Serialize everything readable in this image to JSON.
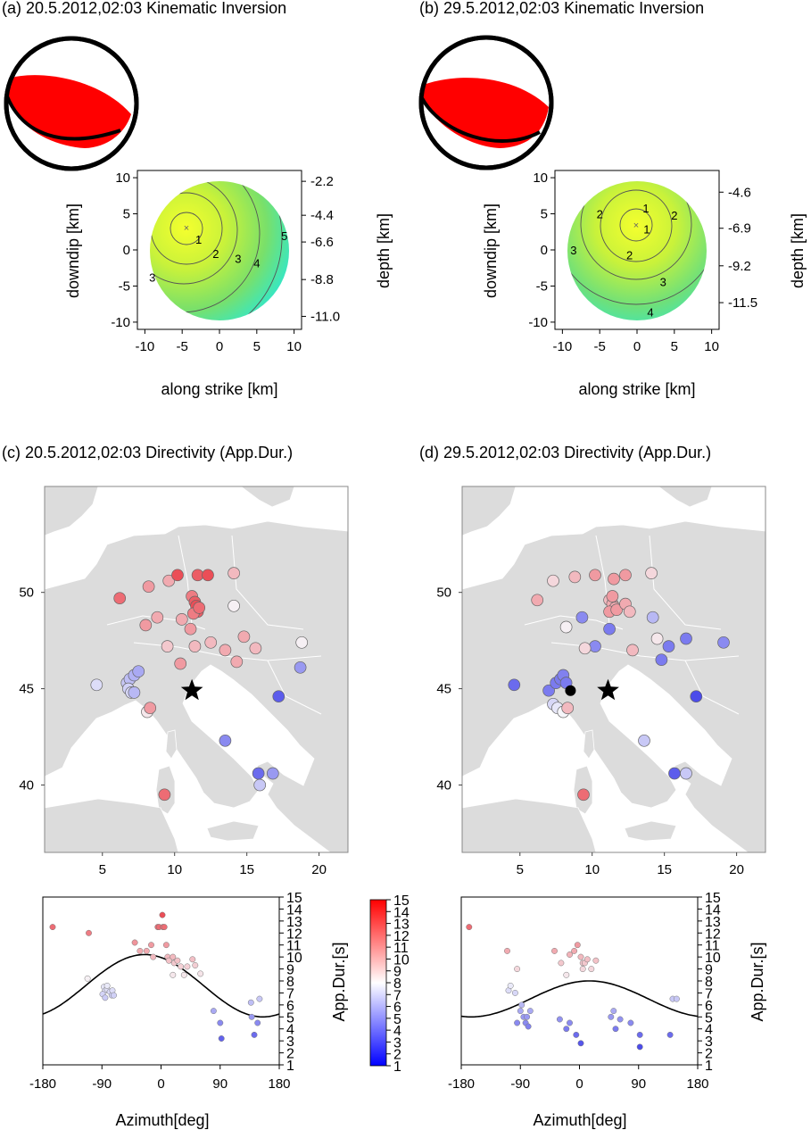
{
  "figure": {
    "panel_a_title": "(a) 20.5.2012,02:03 Kinematic Inversion",
    "panel_b_title": "(b) 29.5.2012,02:03 Kinematic Inversion",
    "panel_c_title": "(c) 20.5.2012,02:03 Directivity (App.Dur.)",
    "panel_d_title": "(d) 29.5.2012,02:03 Directivity (App.Dur.)"
  },
  "colors": {
    "mechanism": "#ff0000",
    "contour_inner": "#f2ff2e",
    "contour_outer": "#2ee6cf",
    "sea": "#ffffff",
    "land": "#dcdcdc",
    "red": "#e8202a",
    "white": "#f4f4f8",
    "blue": "#2a2ae0"
  },
  "chart_data": [
    {
      "type": "contour",
      "panel": "a",
      "xlabel": "along strike [km]",
      "ylabel": "downdip [km]",
      "y2label": "depth [km]",
      "xlim": [
        -11,
        11
      ],
      "ylim": [
        -11,
        11
      ],
      "xticks": [
        -10,
        -5,
        0,
        5,
        10
      ],
      "yticks": [
        10,
        5,
        0,
        -5,
        -10
      ],
      "depth_ticks": [
        {
          "y": 9.5,
          "label": "-2.2"
        },
        {
          "y": 4.8,
          "label": "-4.4"
        },
        {
          "y": 1.1,
          "label": "-6.6"
        },
        {
          "y": -4.1,
          "label": "-8.8"
        },
        {
          "y": -9.2,
          "label": "-11.0"
        }
      ],
      "hypocenter": {
        "x": -4.7,
        "y": 3.2
      },
      "radius": 10,
      "contour_labels": [
        {
          "x": -2.8,
          "y": 1.5,
          "label": "1"
        },
        {
          "x": -0.5,
          "y": -0.5,
          "label": "2"
        },
        {
          "x": 2.5,
          "y": -1.2,
          "label": "3"
        },
        {
          "x": 5.0,
          "y": -1.8,
          "label": "4"
        },
        {
          "x": 8.7,
          "y": 2.0,
          "label": "5"
        },
        {
          "x": -9.0,
          "y": -3.8,
          "label": "3"
        }
      ]
    },
    {
      "type": "contour",
      "panel": "b",
      "xlabel": "along strike [km]",
      "ylabel": "downdip [km]",
      "y2label": "depth [km]",
      "xlim": [
        -11,
        11
      ],
      "ylim": [
        -11,
        11
      ],
      "xticks": [
        -10,
        -5,
        0,
        5,
        10
      ],
      "yticks": [
        10,
        5,
        0,
        -5,
        -10
      ],
      "depth_ticks": [
        {
          "y": 8.0,
          "label": "-4.6"
        },
        {
          "y": 3.0,
          "label": "-6.9"
        },
        {
          "y": -2.2,
          "label": "-9.2"
        },
        {
          "y": -7.3,
          "label": "-11.5"
        }
      ],
      "hypocenter": {
        "x": 0.0,
        "y": 3.6
      },
      "radius": 10,
      "contour_labels": [
        {
          "x": 1.2,
          "y": 5.8,
          "label": "1"
        },
        {
          "x": 1.3,
          "y": 2.9,
          "label": "1"
        },
        {
          "x": -5.0,
          "y": 5.0,
          "label": "2"
        },
        {
          "x": 5.0,
          "y": 4.8,
          "label": "2"
        },
        {
          "x": -1.0,
          "y": -0.7,
          "label": "2"
        },
        {
          "x": -8.5,
          "y": 0.0,
          "label": "3"
        },
        {
          "x": 3.5,
          "y": -4.4,
          "label": "3"
        },
        {
          "x": 1.8,
          "y": -8.6,
          "label": "4"
        }
      ]
    },
    {
      "type": "scatter",
      "panel": "c",
      "xlim": [
        1,
        22
      ],
      "ylim": [
        36.5,
        55.5
      ],
      "xticks": [
        5,
        10,
        15,
        20
      ],
      "yticks": [
        50,
        45,
        40
      ],
      "epicenter": {
        "lon": 11.2,
        "lat": 44.9
      },
      "stations": [
        [
          6.2,
          49.7,
          12.5
        ],
        [
          8.2,
          50.3,
          11
        ],
        [
          9.6,
          50.6,
          10.5
        ],
        [
          10.2,
          50.9,
          13.5
        ],
        [
          11.6,
          50.9,
          13
        ],
        [
          12.3,
          50.9,
          13.5
        ],
        [
          14.1,
          51.0,
          10
        ],
        [
          8.0,
          48.3,
          11
        ],
        [
          8.8,
          48.7,
          10.5
        ],
        [
          10.5,
          48.6,
          10.5
        ],
        [
          11.2,
          49.8,
          12
        ],
        [
          11.4,
          49.5,
          13
        ],
        [
          11.5,
          49.3,
          13.5
        ],
        [
          11.6,
          49.0,
          13
        ],
        [
          11.3,
          48.9,
          12
        ],
        [
          11.7,
          49.2,
          12.5
        ],
        [
          11.1,
          48.1,
          11
        ],
        [
          9.5,
          47.2,
          9.5
        ],
        [
          11.4,
          47.2,
          10
        ],
        [
          12.5,
          47.4,
          10
        ],
        [
          13.5,
          47.0,
          10.5
        ],
        [
          14.8,
          47.7,
          10.5
        ],
        [
          15.6,
          47.1,
          10
        ],
        [
          14.3,
          46.4,
          10.5
        ],
        [
          14.1,
          49.3,
          8.2
        ],
        [
          18.8,
          47.4,
          8.2
        ],
        [
          10.4,
          46.3,
          11
        ],
        [
          4.6,
          45.2,
          7.2
        ],
        [
          6.7,
          45.3,
          6.5
        ],
        [
          6.9,
          45.5,
          6.2
        ],
        [
          7.2,
          45.7,
          5.8
        ],
        [
          7.5,
          45.9,
          5.5
        ],
        [
          6.8,
          45.0,
          6.8
        ],
        [
          7.0,
          44.8,
          7.0
        ],
        [
          7.2,
          44.8,
          6.0
        ],
        [
          8.1,
          43.8,
          8.5
        ],
        [
          8.3,
          44.0,
          11
        ],
        [
          17.2,
          44.6,
          3.0
        ],
        [
          18.7,
          46.1,
          5
        ],
        [
          13.5,
          42.3,
          4.5
        ],
        [
          15.8,
          40.6,
          3.5
        ],
        [
          16.8,
          40.6,
          5
        ],
        [
          15.9,
          40.0,
          6.5
        ],
        [
          9.3,
          39.5,
          12.5
        ]
      ]
    },
    {
      "type": "scatter",
      "panel": "d",
      "xlim": [
        1,
        22
      ],
      "ylim": [
        36.5,
        55.5
      ],
      "xticks": [
        5,
        10,
        15,
        20
      ],
      "yticks": [
        50,
        45,
        40
      ],
      "epicenter": {
        "lon": 11.1,
        "lat": 44.9
      },
      "black_point": {
        "lon": 8.5,
        "lat": 44.9
      },
      "stations": [
        [
          6.2,
          49.6,
          10.5
        ],
        [
          7.3,
          50.6,
          9
        ],
        [
          8.8,
          50.8,
          10
        ],
        [
          10.2,
          50.9,
          11
        ],
        [
          11.5,
          50.7,
          11
        ],
        [
          12.3,
          50.9,
          11
        ],
        [
          14.1,
          51.0,
          9
        ],
        [
          8.2,
          48.2,
          8.2
        ],
        [
          9.3,
          48.7,
          4.5
        ],
        [
          11.2,
          48.1,
          4
        ],
        [
          11.2,
          49.6,
          10
        ],
        [
          11.4,
          49.4,
          10.5
        ],
        [
          11.6,
          49.2,
          10.5
        ],
        [
          11.2,
          49.0,
          11
        ],
        [
          11.7,
          49.1,
          11
        ],
        [
          11.4,
          49.8,
          11
        ],
        [
          12.3,
          49.4,
          10.5
        ],
        [
          12.6,
          49.0,
          10
        ],
        [
          10.2,
          47.2,
          4.5
        ],
        [
          12.8,
          47.0,
          10
        ],
        [
          14.2,
          48.7,
          6
        ],
        [
          14.5,
          47.6,
          8.5
        ],
        [
          15.3,
          47.2,
          4
        ],
        [
          14.8,
          46.5,
          4
        ],
        [
          16.5,
          47.6,
          4
        ],
        [
          19.1,
          47.4,
          4.5
        ],
        [
          9.5,
          47.1,
          9
        ],
        [
          4.6,
          45.2,
          3.5
        ],
        [
          7.0,
          44.9,
          4.0
        ],
        [
          7.5,
          45.3,
          4.0
        ],
        [
          7.8,
          45.5,
          4.0
        ],
        [
          8.0,
          45.7,
          4.2
        ],
        [
          8.2,
          45.3,
          4
        ],
        [
          7.3,
          44.2,
          7
        ],
        [
          7.6,
          44.0,
          7.5
        ],
        [
          8.0,
          43.8,
          8
        ],
        [
          8.3,
          44.0,
          10
        ],
        [
          17.2,
          44.6,
          2.5
        ],
        [
          13.6,
          42.3,
          6.5
        ],
        [
          15.7,
          40.6,
          3
        ],
        [
          16.5,
          40.6,
          6.5
        ],
        [
          9.4,
          39.5,
          12.5
        ]
      ]
    },
    {
      "type": "scatter_curve",
      "panel": "c",
      "xlabel": "Azimuth[deg]",
      "ylabel": "App.Dur.[s]",
      "xlim": [
        -180,
        180
      ],
      "ylim": [
        1,
        15
      ],
      "xticks": [
        -180,
        -90,
        0,
        90,
        180
      ],
      "yticks": [
        15,
        14,
        13,
        12,
        11,
        10,
        9,
        8,
        7,
        6,
        5,
        4,
        3,
        2,
        1
      ],
      "curve": {
        "mean": 7.6,
        "amplitude": 2.6,
        "peak_az": -25
      },
      "points": [
        [
          -165,
          12.5
        ],
        [
          -110,
          12
        ],
        [
          -87,
          7.5
        ],
        [
          -85,
          7.2
        ],
        [
          -82,
          7.3
        ],
        [
          -78,
          7.1
        ],
        [
          -75,
          6.8
        ],
        [
          -74,
          7.2
        ],
        [
          -89,
          6.9
        ],
        [
          -85,
          6.6
        ],
        [
          -72,
          6.8
        ],
        [
          -112,
          8.2
        ],
        [
          -82,
          7.6
        ],
        [
          -40,
          11.2
        ],
        [
          -32,
          10.5
        ],
        [
          -22,
          10.5
        ],
        [
          -15,
          11
        ],
        [
          -12,
          10
        ],
        [
          -5,
          12.5
        ],
        [
          -3,
          12.5
        ],
        [
          2,
          13.5
        ],
        [
          3,
          12.5
        ],
        [
          5,
          12.5
        ],
        [
          8,
          11
        ],
        [
          10,
          10
        ],
        [
          12,
          9.7
        ],
        [
          18,
          10
        ],
        [
          20,
          9.5
        ],
        [
          25,
          9.7
        ],
        [
          30,
          9.2
        ],
        [
          35,
          8.5
        ],
        [
          40,
          9.2
        ],
        [
          48,
          9.8
        ],
        [
          52,
          9.3
        ],
        [
          18,
          8.5
        ],
        [
          60,
          8.6
        ],
        [
          80,
          5.5
        ],
        [
          90,
          4.5
        ],
        [
          92,
          3.2
        ],
        [
          138,
          5
        ],
        [
          142,
          3.5
        ],
        [
          147,
          4.5
        ],
        [
          150,
          6.5
        ],
        [
          137,
          6.2
        ]
      ]
    },
    {
      "type": "scatter_curve",
      "panel": "d",
      "xlabel": "Azimuth[deg]",
      "ylabel": "App.Dur.[s]",
      "xlim": [
        -180,
        180
      ],
      "ylim": [
        1,
        15
      ],
      "xticks": [
        -180,
        -90,
        0,
        90,
        180
      ],
      "yticks": [
        15,
        14,
        13,
        12,
        11,
        10,
        9,
        8,
        7,
        6,
        5,
        4,
        3,
        2,
        1
      ],
      "curve": {
        "mean": 6.5,
        "amplitude": 1.5,
        "peak_az": 15
      },
      "points": [
        [
          -168,
          12.5
        ],
        [
          -110,
          10.5
        ],
        [
          -95,
          9
        ],
        [
          -108,
          7.2
        ],
        [
          -105,
          7.6
        ],
        [
          -98,
          7
        ],
        [
          -90,
          5.5
        ],
        [
          -85,
          5
        ],
        [
          -82,
          4.5
        ],
        [
          -88,
          6
        ],
        [
          -80,
          5
        ],
        [
          -78,
          4.2
        ],
        [
          -75,
          5.5
        ],
        [
          -95,
          4.5
        ],
        [
          -38,
          10.5
        ],
        [
          -28,
          9.5
        ],
        [
          -15,
          10.2
        ],
        [
          -8,
          10.5
        ],
        [
          -3,
          11
        ],
        [
          2,
          10
        ],
        [
          5,
          9.5
        ],
        [
          8,
          9.5
        ],
        [
          12,
          9.8
        ],
        [
          18,
          9
        ],
        [
          25,
          9.7
        ],
        [
          -20,
          8.5
        ],
        [
          -15,
          4.5
        ],
        [
          -5,
          3.5
        ],
        [
          5,
          9
        ],
        [
          -20,
          4
        ],
        [
          52,
          5.5
        ],
        [
          55,
          4
        ],
        [
          62,
          4.8
        ],
        [
          78,
          4.5
        ],
        [
          92,
          3.5
        ],
        [
          92,
          2.5
        ],
        [
          138,
          3.5
        ],
        [
          142,
          6.5
        ],
        [
          148,
          6.5
        ],
        [
          -30,
          4.8
        ],
        [
          2,
          2.8
        ],
        [
          48,
          5
        ]
      ]
    }
  ],
  "colorbar": {
    "label": "App.Dur.[s]",
    "ticks": [
      "15",
      "14",
      "13",
      "12",
      "11",
      "10",
      "9",
      "8",
      "7",
      "6",
      "5",
      "4",
      "3",
      "2",
      "1"
    ]
  }
}
